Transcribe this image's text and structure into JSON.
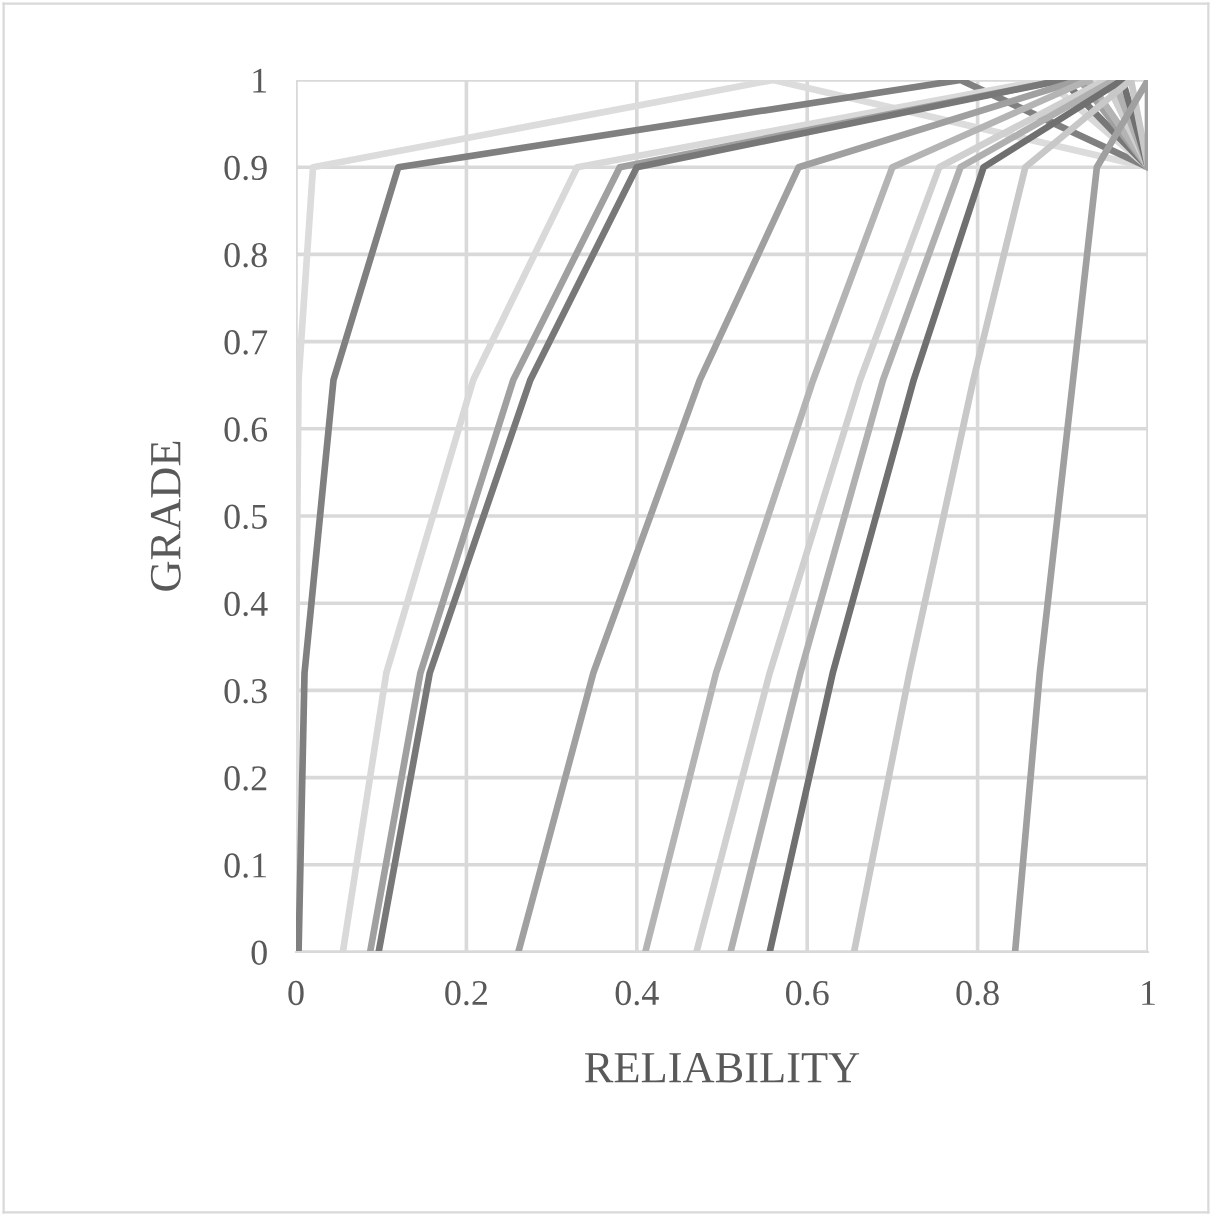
{
  "chart_data": {
    "type": "line",
    "xlabel": "RELIABILITY",
    "ylabel": "GRADE",
    "xlim": [
      0,
      1
    ],
    "ylim": [
      0,
      1
    ],
    "xticks": [
      0,
      0.2,
      0.4,
      0.6,
      0.8,
      1
    ],
    "yticks": [
      0,
      0.1,
      0.2,
      0.3,
      0.4,
      0.5,
      0.6,
      0.7,
      0.8,
      0.9,
      1
    ],
    "grid": true,
    "marker": "none",
    "line_style": "solid",
    "series": [
      {
        "color": "#dcdcdc",
        "x": [
          0,
          0,
          0.003,
          0.02,
          0.56,
          1
        ],
        "values": [
          0,
          0.32,
          0.656,
          0.9,
          1,
          0.9
        ]
      },
      {
        "color": "#808080",
        "x": [
          0.003,
          0.01,
          0.044,
          0.12,
          0.78,
          1
        ],
        "values": [
          0,
          0.32,
          0.656,
          0.9,
          1,
          0.9
        ]
      },
      {
        "color": "#d9d9d9",
        "x": [
          0.055,
          0.106,
          0.208,
          0.33,
          0.88,
          1
        ],
        "values": [
          0,
          0.32,
          0.656,
          0.9,
          1,
          0.9
        ]
      },
      {
        "color": "#a0a0a0",
        "x": [
          0.087,
          0.146,
          0.255,
          0.38,
          0.9,
          1
        ],
        "values": [
          0,
          0.32,
          0.656,
          0.9,
          1,
          0.9
        ]
      },
      {
        "color": "#787878",
        "x": [
          0.097,
          0.157,
          0.275,
          0.4,
          0.9,
          1
        ],
        "values": [
          0,
          0.32,
          0.656,
          0.9,
          1,
          0.9
        ]
      },
      {
        "color": "#a0a0a0",
        "x": [
          0.261,
          0.349,
          0.474,
          0.59,
          0.92,
          1
        ],
        "values": [
          0,
          0.32,
          0.656,
          0.9,
          1,
          0.9
        ]
      },
      {
        "color": "#b4b4b4",
        "x": [
          0.41,
          0.493,
          0.607,
          0.7,
          0.93,
          1
        ],
        "values": [
          0,
          0.32,
          0.656,
          0.9,
          1,
          0.9
        ]
      },
      {
        "color": "#d0d0d0",
        "x": [
          0.47,
          0.556,
          0.662,
          0.755,
          0.95,
          1
        ],
        "values": [
          0,
          0.32,
          0.656,
          0.9,
          1,
          0.9
        ]
      },
      {
        "color": "#b0b0b0",
        "x": [
          0.51,
          0.592,
          0.689,
          0.78,
          0.96,
          1
        ],
        "values": [
          0,
          0.32,
          0.656,
          0.9,
          1,
          0.9
        ]
      },
      {
        "color": "#707070",
        "x": [
          0.556,
          0.63,
          0.725,
          0.807,
          0.97,
          1
        ],
        "values": [
          0,
          0.32,
          0.656,
          0.9,
          1,
          0.9
        ]
      },
      {
        "color": "#c8c8c8",
        "x": [
          0.655,
          0.72,
          0.795,
          0.856,
          0.98,
          1
        ],
        "values": [
          0,
          0.32,
          0.656,
          0.9,
          1,
          0.9
        ]
      },
      {
        "color": "#a0a0a0",
        "x": [
          0.844,
          0.873,
          0.912,
          0.94,
          1,
          1
        ],
        "values": [
          0,
          0.32,
          0.656,
          0.9,
          1,
          0.9
        ]
      }
    ]
  }
}
